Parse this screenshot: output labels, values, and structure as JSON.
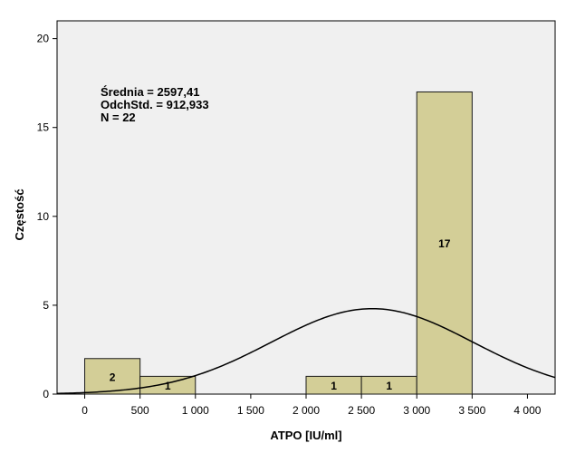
{
  "chart_data": {
    "type": "bar",
    "subtype": "histogram",
    "xlabel": "ATPO [IU/ml]",
    "ylabel": "Częstość",
    "xlim": [
      -250,
      4250
    ],
    "ylim": [
      0,
      21
    ],
    "x_ticks": [
      {
        "value": 0,
        "label": "0"
      },
      {
        "value": 500,
        "label": "500"
      },
      {
        "value": 1000,
        "label": "1 000"
      },
      {
        "value": 1500,
        "label": "1 500"
      },
      {
        "value": 2000,
        "label": "2 000"
      },
      {
        "value": 2500,
        "label": "2 500"
      },
      {
        "value": 3000,
        "label": "3 000"
      },
      {
        "value": 3500,
        "label": "3 500"
      },
      {
        "value": 4000,
        "label": "4 000"
      }
    ],
    "y_ticks": [
      {
        "value": 0,
        "label": "0"
      },
      {
        "value": 5,
        "label": "5"
      },
      {
        "value": 10,
        "label": "10"
      },
      {
        "value": 15,
        "label": "15"
      },
      {
        "value": 20,
        "label": "20"
      }
    ],
    "bins": [
      {
        "start": 0,
        "end": 500,
        "count": 2,
        "label": "2"
      },
      {
        "start": 500,
        "end": 1000,
        "count": 1,
        "label": "1"
      },
      {
        "start": 2000,
        "end": 2500,
        "count": 1,
        "label": "1"
      },
      {
        "start": 2500,
        "end": 3000,
        "count": 1,
        "label": "1"
      },
      {
        "start": 3000,
        "end": 3500,
        "count": 17,
        "label": "17"
      }
    ],
    "normal_curve": {
      "mean": 2597.41,
      "sd": 912.933,
      "n": 22,
      "bin_width": 500
    },
    "stats_lines": [
      "Średnia = 2597,41",
      "OdchStd. = 912,933",
      "N = 22"
    ],
    "grid": false,
    "colors": {
      "bar_fill": "#d3ce97",
      "bar_stroke": "#1a1a1a",
      "plot_bg": "#f0f0f0",
      "curve": "#000000"
    }
  }
}
